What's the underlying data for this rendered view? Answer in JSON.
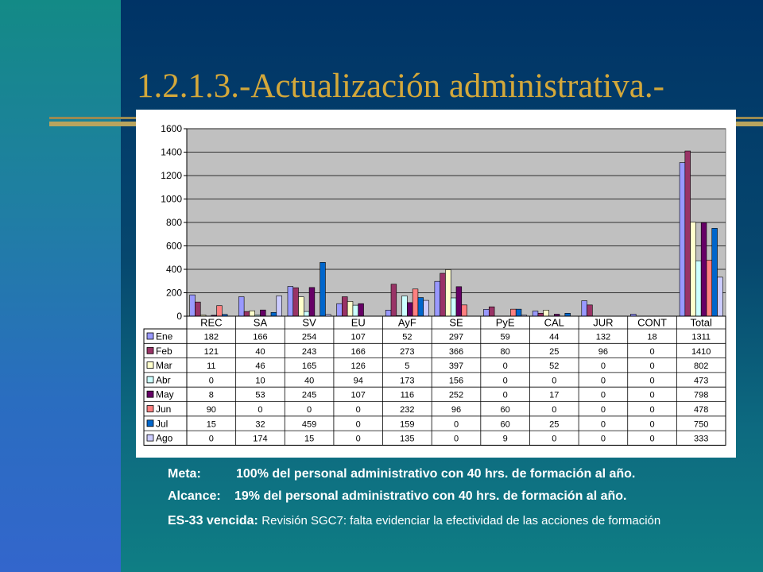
{
  "slide": {
    "title": "1.2.1.3.-Actualización administrativa.-",
    "meta": {
      "label": "Meta:",
      "text": "100% del personal administrativo con 40 hrs. de formación al año."
    },
    "alcance": {
      "label": "Alcance:",
      "text": "19% del personal administrativo con 40 hrs. de formación al año."
    },
    "es33": {
      "label": "ES-33 vencida:",
      "text": "Revisión SGC7: falta evidenciar la efectividad de las acciones de formación"
    }
  },
  "chart_data": {
    "type": "bar",
    "ylim": [
      0,
      1600
    ],
    "yticks": [
      0,
      200,
      400,
      600,
      800,
      1000,
      1200,
      1400,
      1600
    ],
    "grid": true,
    "legend_placement": "data-table-left",
    "plot_background": "#c0c0c0",
    "categories": [
      "REC",
      "SA",
      "SV",
      "EU",
      "AyF",
      "SE",
      "PyE",
      "CAL",
      "JUR",
      "CONT",
      "Total"
    ],
    "series": [
      {
        "name": "Ene",
        "color": "#9999ff",
        "values": [
          182,
          166,
          254,
          107,
          52,
          297,
          59,
          44,
          132,
          18,
          1311
        ]
      },
      {
        "name": "Feb",
        "color": "#993366",
        "values": [
          121,
          40,
          243,
          166,
          273,
          366,
          80,
          25,
          96,
          0,
          1410
        ]
      },
      {
        "name": "Mar",
        "color": "#ffffcc",
        "values": [
          11,
          46,
          165,
          126,
          5,
          397,
          0,
          52,
          0,
          0,
          802
        ]
      },
      {
        "name": "Abr",
        "color": "#ccffff",
        "values": [
          0,
          10,
          40,
          94,
          173,
          156,
          0,
          0,
          0,
          0,
          473
        ]
      },
      {
        "name": "May",
        "color": "#660066",
        "values": [
          8,
          53,
          245,
          107,
          116,
          252,
          0,
          17,
          0,
          0,
          798
        ]
      },
      {
        "name": "Jun",
        "color": "#ff8080",
        "values": [
          90,
          0,
          0,
          0,
          232,
          96,
          60,
          0,
          0,
          0,
          478
        ]
      },
      {
        "name": "Jul",
        "color": "#0066cc",
        "values": [
          15,
          32,
          459,
          0,
          159,
          0,
          60,
          25,
          0,
          0,
          750
        ]
      },
      {
        "name": "Ago",
        "color": "#ccccff",
        "values": [
          0,
          174,
          15,
          0,
          135,
          0,
          9,
          0,
          0,
          0,
          333
        ]
      }
    ]
  }
}
